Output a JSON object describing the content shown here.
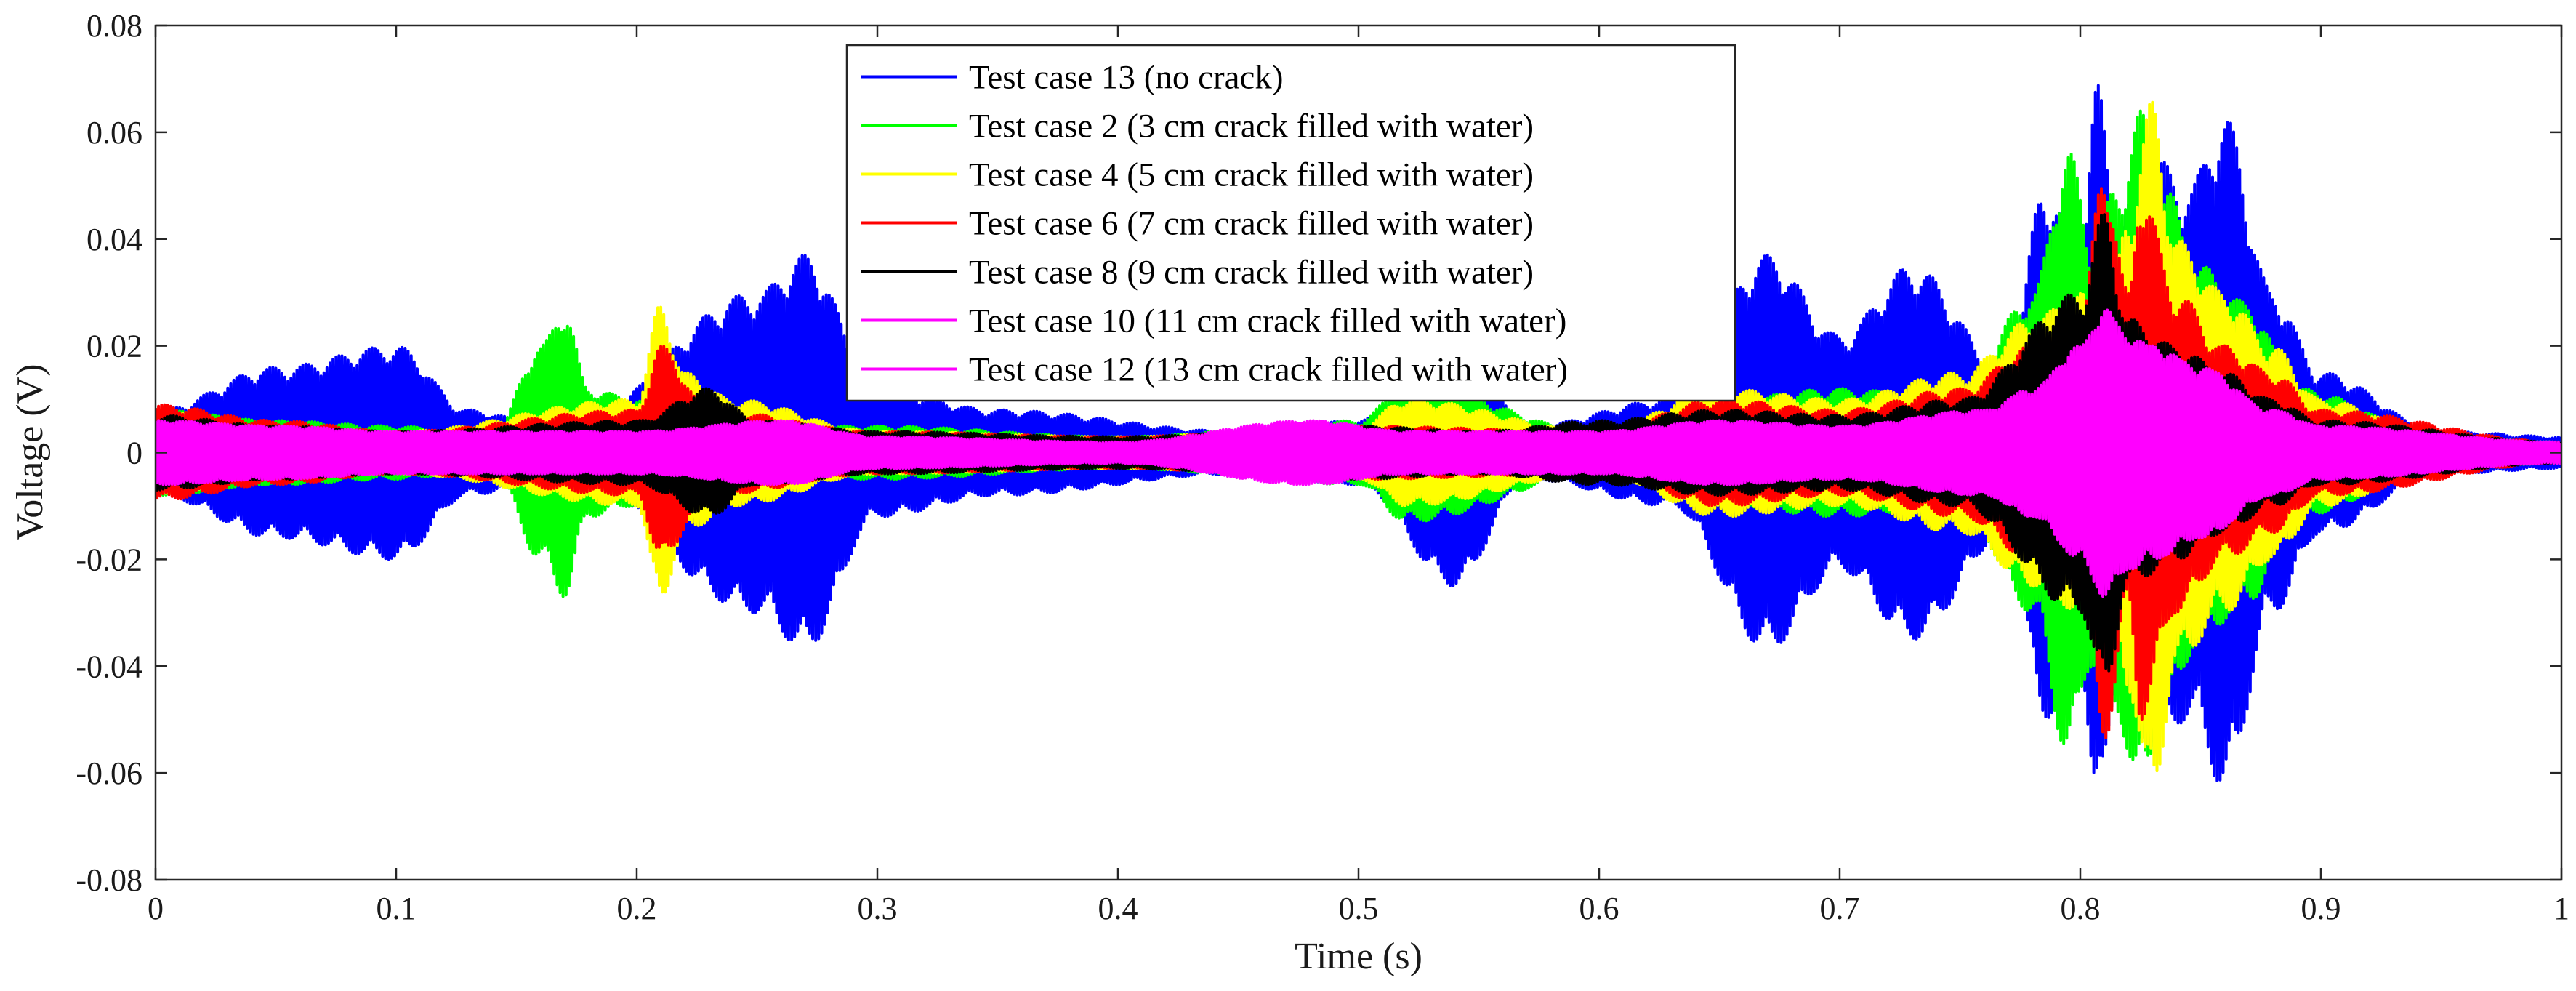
{
  "chart_data": {
    "type": "line",
    "title": "",
    "xlabel": "Time (s)",
    "ylabel": "Voltage (V)",
    "xlim": [
      0,
      1
    ],
    "ylim": [
      -0.08,
      0.08
    ],
    "x_ticks": [
      0,
      0.1,
      0.2,
      0.3,
      0.4,
      0.5,
      0.6,
      0.7,
      0.8,
      0.9,
      1
    ],
    "x_tick_labels": [
      "0",
      "0.1",
      "0.2",
      "0.3",
      "0.4",
      "0.5",
      "0.6",
      "0.7",
      "0.8",
      "0.9",
      "1"
    ],
    "y_ticks": [
      -0.08,
      -0.06,
      -0.04,
      -0.02,
      0,
      0.02,
      0.04,
      0.06,
      0.08
    ],
    "y_tick_labels": [
      "-0.08",
      "-0.06",
      "-0.04",
      "-0.02",
      "0",
      "0.02",
      "0.04",
      "0.06",
      "0.08"
    ],
    "grid": false,
    "legend_position": "top-center",
    "series_style": "oscillating signal envelopes (peak amplitude vs time)",
    "series": [
      {
        "name": "Test case 13 (no crack)",
        "color": "#0000ff",
        "envelope_points": [
          [
            0,
            0.008
          ],
          [
            0.05,
            0.016
          ],
          [
            0.1,
            0.02
          ],
          [
            0.13,
            0.008
          ],
          [
            0.17,
            0.004
          ],
          [
            0.25,
            0.03
          ],
          [
            0.27,
            0.037
          ],
          [
            0.3,
            0.012
          ],
          [
            0.35,
            0.008
          ],
          [
            0.45,
            0.004
          ],
          [
            0.5,
            0.006
          ],
          [
            0.54,
            0.025
          ],
          [
            0.57,
            0.005
          ],
          [
            0.63,
            0.01
          ],
          [
            0.67,
            0.037
          ],
          [
            0.7,
            0.022
          ],
          [
            0.73,
            0.035
          ],
          [
            0.77,
            0.015
          ],
          [
            0.785,
            0.05
          ],
          [
            0.8,
            0.04
          ],
          [
            0.807,
            0.069
          ],
          [
            0.815,
            0.045
          ],
          [
            0.832,
            0.055
          ],
          [
            0.845,
            0.05
          ],
          [
            0.86,
            0.063
          ],
          [
            0.88,
            0.03
          ],
          [
            0.9,
            0.015
          ],
          [
            0.95,
            0.004
          ],
          [
            1,
            0.003
          ]
        ]
      },
      {
        "name": "Test case 2 (3 cm crack filled with water)",
        "color": "#00ff00",
        "envelope_points": [
          [
            0,
            0.008
          ],
          [
            0.05,
            0.006
          ],
          [
            0.1,
            0.005
          ],
          [
            0.14,
            0.003
          ],
          [
            0.16,
            0.02
          ],
          [
            0.17,
            0.027
          ],
          [
            0.18,
            0.012
          ],
          [
            0.2,
            0.01
          ],
          [
            0.22,
            0.005
          ],
          [
            0.3,
            0.005
          ],
          [
            0.4,
            0.003
          ],
          [
            0.5,
            0.006
          ],
          [
            0.52,
            0.013
          ],
          [
            0.6,
            0.004
          ],
          [
            0.65,
            0.01
          ],
          [
            0.7,
            0.012
          ],
          [
            0.75,
            0.01
          ],
          [
            0.78,
            0.03
          ],
          [
            0.795,
            0.057
          ],
          [
            0.805,
            0.04
          ],
          [
            0.815,
            0.05
          ],
          [
            0.825,
            0.064
          ],
          [
            0.835,
            0.05
          ],
          [
            0.85,
            0.035
          ],
          [
            0.87,
            0.028
          ],
          [
            0.89,
            0.012
          ],
          [
            0.95,
            0.003
          ],
          [
            1,
            0.002
          ]
        ]
      },
      {
        "name": "Test case 4 (5 cm crack filled with water)",
        "color": "#ffff00",
        "envelope_points": [
          [
            0,
            0.008
          ],
          [
            0.05,
            0.005
          ],
          [
            0.1,
            0.004
          ],
          [
            0.2,
            0.01
          ],
          [
            0.21,
            0.028
          ],
          [
            0.22,
            0.015
          ],
          [
            0.24,
            0.01
          ],
          [
            0.3,
            0.004
          ],
          [
            0.4,
            0.003
          ],
          [
            0.5,
            0.005
          ],
          [
            0.52,
            0.01
          ],
          [
            0.6,
            0.004
          ],
          [
            0.65,
            0.012
          ],
          [
            0.7,
            0.01
          ],
          [
            0.75,
            0.015
          ],
          [
            0.78,
            0.025
          ],
          [
            0.8,
            0.03
          ],
          [
            0.81,
            0.02
          ],
          [
            0.82,
            0.045
          ],
          [
            0.83,
            0.066
          ],
          [
            0.84,
            0.04
          ],
          [
            0.86,
            0.03
          ],
          [
            0.88,
            0.02
          ],
          [
            0.9,
            0.01
          ],
          [
            0.95,
            0.003
          ],
          [
            1,
            0.002
          ]
        ]
      },
      {
        "name": "Test case 6 (7 cm crack filled with water)",
        "color": "#ff0000",
        "envelope_points": [
          [
            0,
            0.009
          ],
          [
            0.05,
            0.006
          ],
          [
            0.1,
            0.004
          ],
          [
            0.2,
            0.008
          ],
          [
            0.21,
            0.02
          ],
          [
            0.23,
            0.008
          ],
          [
            0.3,
            0.004
          ],
          [
            0.4,
            0.003
          ],
          [
            0.5,
            0.005
          ],
          [
            0.6,
            0.004
          ],
          [
            0.65,
            0.01
          ],
          [
            0.7,
            0.008
          ],
          [
            0.75,
            0.012
          ],
          [
            0.78,
            0.02
          ],
          [
            0.8,
            0.025
          ],
          [
            0.81,
            0.054
          ],
          [
            0.82,
            0.03
          ],
          [
            0.825,
            0.05
          ],
          [
            0.84,
            0.03
          ],
          [
            0.86,
            0.02
          ],
          [
            0.88,
            0.015
          ],
          [
            0.9,
            0.008
          ],
          [
            1,
            0.002
          ]
        ]
      },
      {
        "name": "Test case 8 (9 cm crack filled with water)",
        "color": "#000000",
        "envelope_points": [
          [
            0,
            0.007
          ],
          [
            0.05,
            0.005
          ],
          [
            0.1,
            0.004
          ],
          [
            0.2,
            0.006
          ],
          [
            0.23,
            0.012
          ],
          [
            0.25,
            0.006
          ],
          [
            0.3,
            0.004
          ],
          [
            0.4,
            0.003
          ],
          [
            0.5,
            0.005
          ],
          [
            0.55,
            0.004
          ],
          [
            0.6,
            0.006
          ],
          [
            0.65,
            0.008
          ],
          [
            0.7,
            0.007
          ],
          [
            0.75,
            0.01
          ],
          [
            0.8,
            0.03
          ],
          [
            0.81,
            0.045
          ],
          [
            0.82,
            0.025
          ],
          [
            0.84,
            0.02
          ],
          [
            0.86,
            0.015
          ],
          [
            0.88,
            0.01
          ],
          [
            0.9,
            0.006
          ],
          [
            1,
            0.002
          ]
        ]
      },
      {
        "name": "Test case 10 (11 cm crack filled with water)",
        "color": "#ff00ff",
        "envelope_points": [
          [
            0,
            0.006
          ],
          [
            0.05,
            0.005
          ],
          [
            0.1,
            0.004
          ],
          [
            0.15,
            0.004
          ],
          [
            0.2,
            0.004
          ],
          [
            0.26,
            0.006
          ],
          [
            0.3,
            0.003
          ],
          [
            0.4,
            0.002
          ],
          [
            0.48,
            0.006
          ],
          [
            0.52,
            0.004
          ],
          [
            0.6,
            0.004
          ],
          [
            0.65,
            0.006
          ],
          [
            0.7,
            0.005
          ],
          [
            0.76,
            0.008
          ],
          [
            0.78,
            0.012
          ],
          [
            0.8,
            0.02
          ],
          [
            0.81,
            0.027
          ],
          [
            0.82,
            0.022
          ],
          [
            0.83,
            0.02
          ],
          [
            0.85,
            0.016
          ],
          [
            0.88,
            0.008
          ],
          [
            0.9,
            0.005
          ],
          [
            1,
            0.002
          ]
        ]
      },
      {
        "name": "Test case 12 (13 cm crack filled with water)",
        "color": "#ff00ff",
        "envelope_points": [
          [
            0,
            0.006
          ],
          [
            0.05,
            0.005
          ],
          [
            0.1,
            0.004
          ],
          [
            0.15,
            0.004
          ],
          [
            0.2,
            0.004
          ],
          [
            0.26,
            0.006
          ],
          [
            0.3,
            0.003
          ],
          [
            0.4,
            0.002
          ],
          [
            0.48,
            0.006
          ],
          [
            0.52,
            0.004
          ],
          [
            0.6,
            0.004
          ],
          [
            0.65,
            0.006
          ],
          [
            0.7,
            0.005
          ],
          [
            0.76,
            0.008
          ],
          [
            0.78,
            0.012
          ],
          [
            0.8,
            0.02
          ],
          [
            0.81,
            0.027
          ],
          [
            0.82,
            0.022
          ],
          [
            0.83,
            0.02
          ],
          [
            0.85,
            0.016
          ],
          [
            0.88,
            0.008
          ],
          [
            0.9,
            0.005
          ],
          [
            1,
            0.002
          ]
        ]
      }
    ]
  }
}
